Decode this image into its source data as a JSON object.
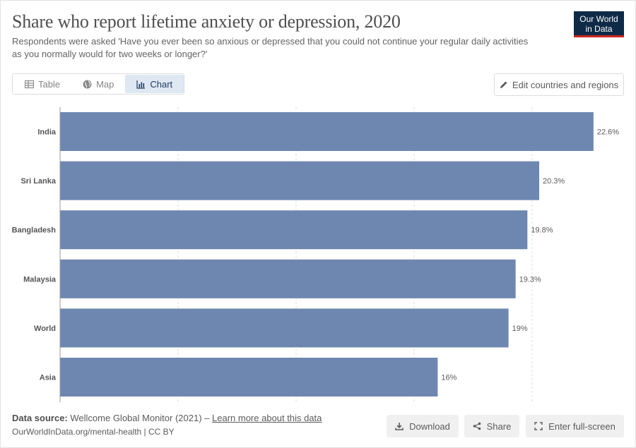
{
  "header": {
    "title": "Share who report lifetime anxiety or depression, 2020",
    "subtitle": "Respondents were asked 'Have you ever been so anxious or depressed that you could not continue your regular daily activities as you normally would for two weeks or longer?'",
    "logo_line1": "Our World",
    "logo_line2": "in Data"
  },
  "tabs": [
    {
      "label": "Table",
      "icon": "table-icon"
    },
    {
      "label": "Map",
      "icon": "globe-icon"
    },
    {
      "label": "Chart",
      "icon": "chart-icon",
      "active": true
    }
  ],
  "edit_button": {
    "label": "Edit countries and regions",
    "icon": "pencil-icon"
  },
  "chart_data": {
    "type": "bar",
    "orientation": "horizontal",
    "categories": [
      "India",
      "Sri Lanka",
      "Bangladesh",
      "Malaysia",
      "World",
      "Asia"
    ],
    "values": [
      22.6,
      20.3,
      19.8,
      19.3,
      19,
      16
    ],
    "value_labels": [
      "22.6%",
      "20.3%",
      "19.8%",
      "19.3%",
      "19%",
      "16%"
    ],
    "xlim": [
      0,
      24
    ],
    "gridlines": [
      0,
      5,
      10,
      15,
      20
    ],
    "bar_color": "#6d87b0",
    "grid": true
  },
  "footer": {
    "source_label": "Data source:",
    "source_text": "Wellcome Global Monitor (2021) –",
    "learn_more": "Learn more about this data",
    "url": "OurWorldInData.org/mental-health | CC BY",
    "download_label": "Download",
    "share_label": "Share",
    "fullscreen_label": "Enter full-screen"
  }
}
